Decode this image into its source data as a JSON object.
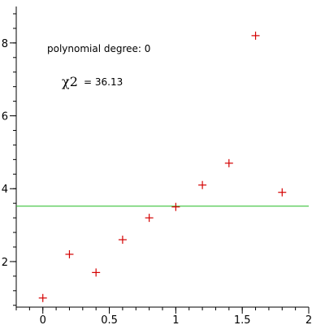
{
  "chart_data": {
    "type": "scatter",
    "title": "",
    "xlabel": "",
    "ylabel": "",
    "xlim": [
      -0.2,
      2
    ],
    "ylim": [
      0.75,
      9
    ],
    "x_ticks": [
      {
        "value": 0,
        "label": "0"
      },
      {
        "value": 0.5,
        "label": "0.5"
      },
      {
        "value": 1,
        "label": "1"
      },
      {
        "value": 1.5,
        "label": "1.5"
      },
      {
        "value": 2,
        "label": "2"
      }
    ],
    "y_ticks": [
      {
        "value": 2,
        "label": "2"
      },
      {
        "value": 4,
        "label": "4"
      },
      {
        "value": 6,
        "label": "6"
      },
      {
        "value": 8,
        "label": "8"
      }
    ],
    "x_minor_step": 0.1,
    "y_minor_step": 0.4,
    "grid": false,
    "series": [
      {
        "type": "scatter",
        "marker": "plus",
        "color": "#d40000",
        "x": [
          0,
          0.2,
          0.4,
          0.6,
          0.8,
          1.0,
          1.2,
          1.4,
          1.6,
          1.8
        ],
        "y": [
          1.0,
          2.2,
          1.7,
          2.6,
          3.2,
          3.5,
          4.1,
          4.7,
          8.2,
          3.9
        ]
      },
      {
        "type": "line",
        "color": "#22bb22",
        "x": [
          -0.2,
          2
        ],
        "y": [
          3.52,
          3.52
        ]
      }
    ],
    "annotations": {
      "degree_text": "polynomial degree: 0",
      "chi_symbol": "χ2",
      "chi_value_text": "= 36.13"
    }
  }
}
